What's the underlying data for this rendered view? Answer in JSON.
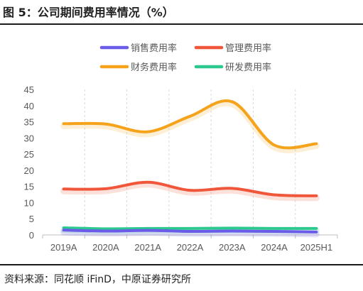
{
  "figure_title": "图 5：公司期间费用率情况（%）",
  "source": "资料来源：同花顺 iFinD，中原证券研究所",
  "chart_data": {
    "type": "line",
    "x": [
      "2019A",
      "2020A",
      "2021A",
      "2022A",
      "2023A",
      "2024A",
      "2025H1"
    ],
    "ylim": [
      0,
      45
    ],
    "yticks": [
      0,
      5,
      10,
      15,
      20,
      25,
      30,
      35,
      40,
      45
    ],
    "ytick_labels": [
      "0",
      "5",
      "10",
      "15",
      "20",
      "25",
      "30",
      "35",
      "40",
      "45"
    ],
    "grid": "vertical-dashed",
    "legend_position": "top",
    "series": [
      {
        "name": "销售费用率",
        "color": "#6a5be8",
        "values": [
          1.5,
          1.2,
          1.4,
          1.1,
          1.2,
          1.1,
          0.9
        ]
      },
      {
        "name": "管理费用率",
        "color": "#f0563a",
        "values": [
          14.2,
          14.3,
          16.3,
          13.8,
          14.4,
          12.4,
          12.1
        ]
      },
      {
        "name": "财务费用率",
        "color": "#f5a31a",
        "values": [
          34.4,
          34.3,
          31.9,
          36.7,
          41.2,
          27.8,
          28.2
        ]
      },
      {
        "name": "研发费用率",
        "color": "#2bc98e",
        "values": [
          2.2,
          1.9,
          2.0,
          2.0,
          2.1,
          2.0,
          2.0
        ]
      }
    ]
  }
}
